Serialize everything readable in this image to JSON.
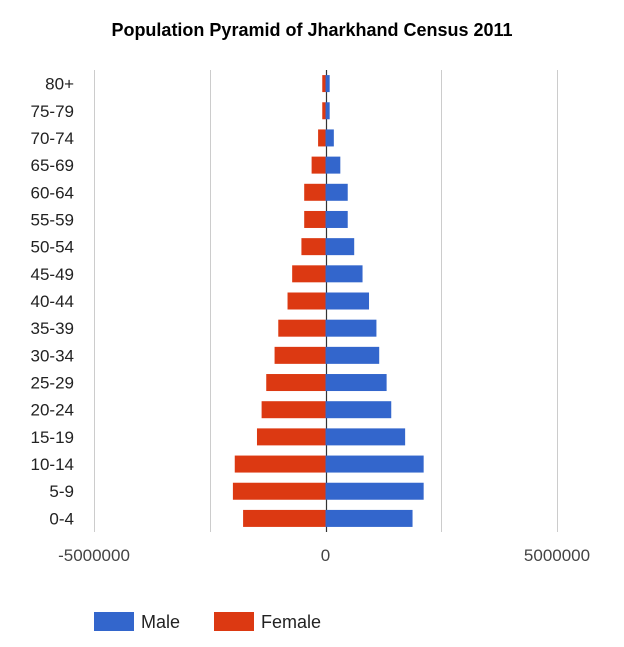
{
  "chart_data": {
    "type": "bar",
    "orientation": "horizontal",
    "title": "Population Pyramid of Jharkhand Census 2011",
    "categories": [
      "0-4",
      "5-9",
      "10-14",
      "15-19",
      "20-24",
      "25-29",
      "30-34",
      "35-39",
      "40-44",
      "45-49",
      "50-54",
      "55-59",
      "60-64",
      "65-69",
      "70-74",
      "75-79",
      "80+"
    ],
    "series": [
      {
        "name": "Male",
        "color": "#3366cc",
        "values": [
          1880000,
          2120000,
          2120000,
          1720000,
          1420000,
          1320000,
          1160000,
          1100000,
          940000,
          800000,
          620000,
          480000,
          480000,
          320000,
          180000,
          90000,
          90000
        ]
      },
      {
        "name": "Female",
        "color": "#dc3912",
        "values": [
          -1780000,
          -2000000,
          -1960000,
          -1480000,
          -1380000,
          -1280000,
          -1100000,
          -1020000,
          -820000,
          -720000,
          -520000,
          -460000,
          -460000,
          -300000,
          -160000,
          -70000,
          -70000
        ]
      }
    ],
    "xlim": [
      -5000000,
      5000000
    ],
    "xticks": [
      "-5000000",
      "0",
      "5000000"
    ],
    "grid": true,
    "legend_position": "bottom"
  }
}
